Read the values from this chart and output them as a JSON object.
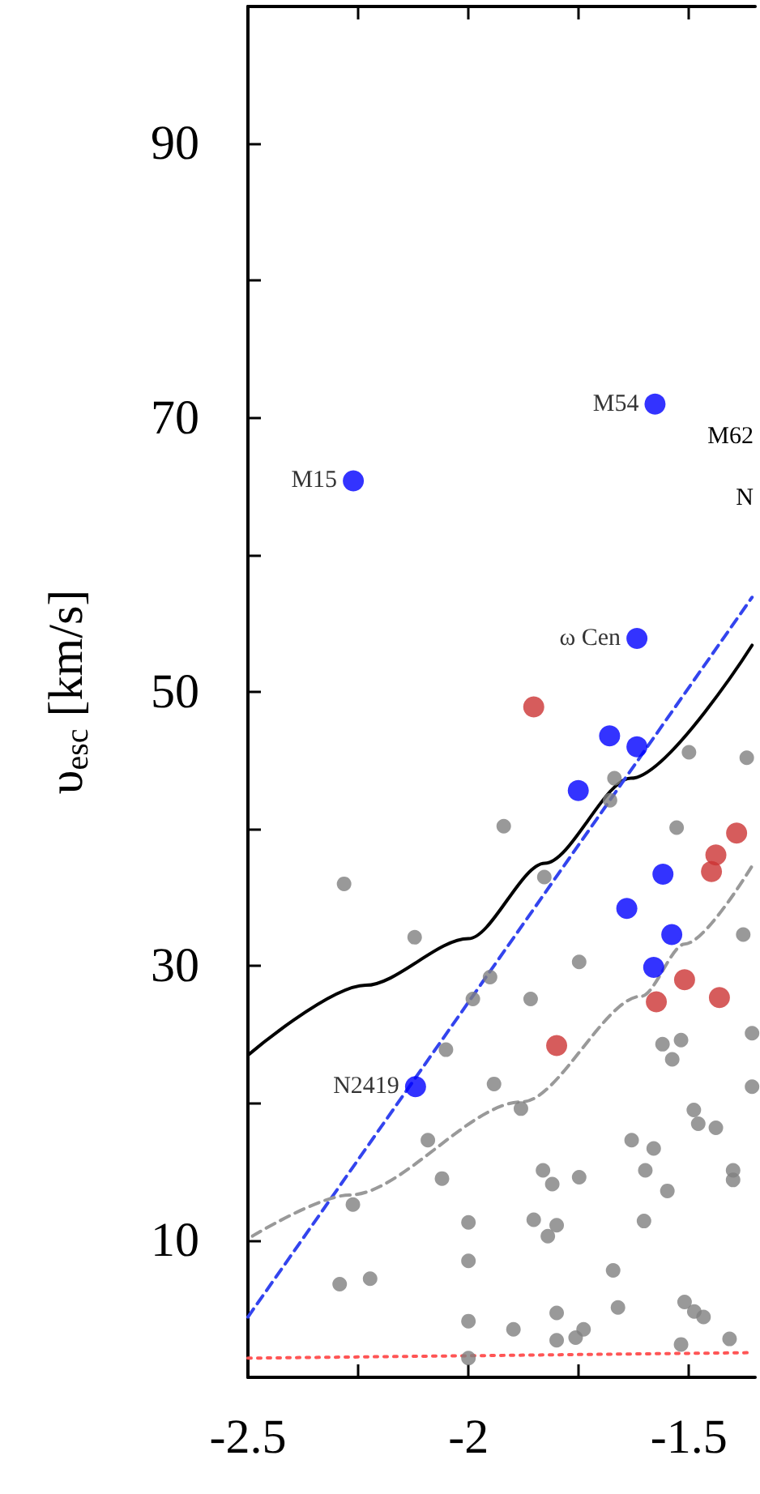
{
  "chart_data": {
    "type": "scatter",
    "ylabel": "υ$_{esc}$ [km/s]",
    "xlim": [
      -2.5,
      -1.35
    ],
    "xticks": [
      -2.5,
      {
        "value": -2.25,
        "label": null
      },
      -2,
      {
        "value": -1.75,
        "label": null
      },
      -1.5
    ],
    "ylim": [
      0,
      100
    ],
    "yticks": [
      {
        "value": 0,
        "label": null
      },
      10,
      {
        "value": 20,
        "label": null
      },
      30,
      {
        "value": 40,
        "label": null
      },
      50,
      {
        "value": 60,
        "label": null
      },
      70,
      {
        "value": 80,
        "label": null
      },
      90,
      {
        "value": 100,
        "label": null
      }
    ],
    "grid": false,
    "marker": "circle",
    "series": [
      {
        "color": "#808080",
        "x": [
          -1.5,
          -1.369,
          -1.669,
          -1.679,
          -1.92,
          -1.528,
          -2.282,
          -1.828,
          -2.122,
          -1.377,
          -1.749,
          -1.951,
          -1.99,
          -1.859,
          -2.051,
          -1.942,
          -1.56,
          -1.518,
          -1.538,
          -1.357,
          -1.357,
          -1.881,
          -1.489,
          -1.479,
          -1.439,
          -2.092,
          -1.63,
          -1.58,
          -1.831,
          -1.81,
          -1.749,
          -1.599,
          -1.4,
          -1.4,
          -2.06,
          -1.549,
          -2.262,
          -2.0,
          -1.852,
          -1.8,
          -1.82,
          -1.602,
          -2.0,
          -1.672,
          -2.292,
          -2.223,
          -2.0,
          -1.898,
          -1.8,
          -1.8,
          -1.757,
          -1.739,
          -1.661,
          -1.51,
          -1.488,
          -1.467,
          -1.408,
          -1.518,
          -2.0
        ],
        "values": [
          45.6,
          45.2,
          43.7,
          42.1,
          40.2,
          40.1,
          36.0,
          36.5,
          32.1,
          32.3,
          30.3,
          29.2,
          27.6,
          27.6,
          23.9,
          21.4,
          24.3,
          24.6,
          23.2,
          25.1,
          21.2,
          19.6,
          19.5,
          18.5,
          18.2,
          17.3,
          17.3,
          16.7,
          15.1,
          14.1,
          14.6,
          15.1,
          15.1,
          14.4,
          14.5,
          13.6,
          12.6,
          11.3,
          11.5,
          11.1,
          10.3,
          11.4,
          8.5,
          7.8,
          6.8,
          7.2,
          4.1,
          3.5,
          4.7,
          2.7,
          2.9,
          3.5,
          5.1,
          5.5,
          4.8,
          4.4,
          2.8,
          2.4,
          1.4
        ]
      },
      {
        "color": "#cc3333",
        "x": [
          -1.852,
          -1.392,
          -1.439,
          -1.449,
          -1.51,
          -1.574,
          -1.431,
          -1.8
        ],
        "values": [
          48.9,
          39.7,
          38.1,
          36.9,
          29.0,
          27.4,
          27.7,
          24.2
        ]
      },
      {
        "color": "#0000ff",
        "x": [
          -1.577,
          -2.261,
          -1.618,
          -1.68,
          -1.618,
          -1.751,
          -1.559,
          -1.641,
          -1.539,
          -1.58,
          -2.12
        ],
        "values": [
          71.0,
          65.4,
          53.9,
          46.8,
          46.0,
          42.8,
          36.7,
          34.2,
          32.3,
          29.9,
          21.2
        ]
      },
      {
        "type": "line",
        "color": "#000000",
        "marker": "none",
        "line_style": "solid",
        "x": [
          -2.5,
          -2.233,
          -2.0,
          -1.827,
          -1.632,
          -1.357
        ],
        "values": [
          23.5,
          28.6,
          32.0,
          37.5,
          43.7,
          53.4
        ]
      },
      {
        "type": "line",
        "color": "#3344ee",
        "marker": "none",
        "line_style": "dashed",
        "x": [
          -2.5,
          -1.357
        ],
        "values": [
          4.4,
          56.9
        ]
      },
      {
        "type": "line",
        "color": "#999999",
        "marker": "none",
        "line_style": "dashed",
        "x": [
          -2.49,
          -2.27,
          -1.878,
          -1.608,
          -1.51,
          -1.357
        ],
        "values": [
          10.3,
          13.3,
          20.1,
          27.8,
          31.6,
          37.3
        ]
      },
      {
        "type": "line",
        "color": "#ff5555",
        "marker": "none",
        "line_style": "dotted",
        "x": [
          -2.5,
          -1.357
        ],
        "values": [
          1.4,
          1.8
        ]
      }
    ],
    "annotations": [
      {
        "text": "M54",
        "x": -1.577,
        "y": 71.0
      },
      {
        "text": "M15",
        "x": -2.261,
        "y": 65.4
      },
      {
        "text": "ω Cen",
        "x": -1.618,
        "y": 53.9
      },
      {
        "text": "N2419",
        "x": -2.12,
        "y": 21.2
      },
      "M62",
      "N"
    ]
  }
}
